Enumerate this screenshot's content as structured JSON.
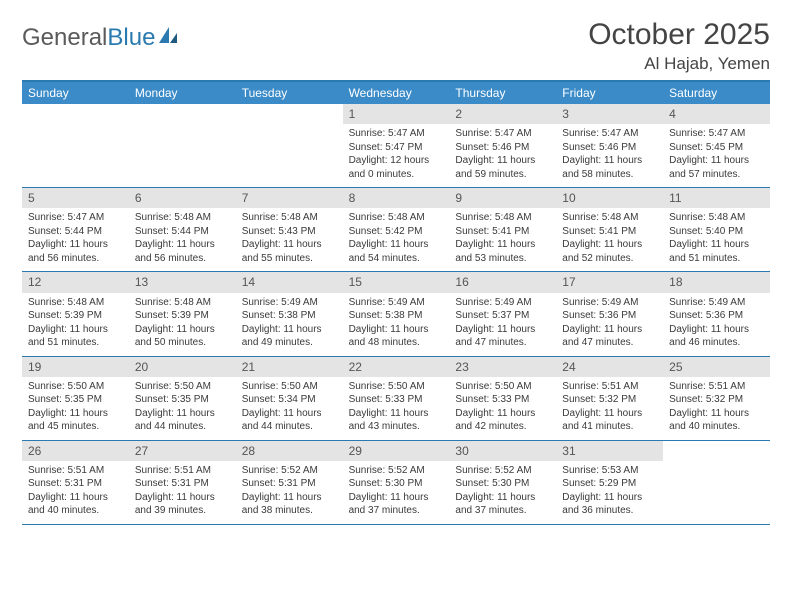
{
  "logo": {
    "text1": "General",
    "text2": "Blue"
  },
  "title": "October 2025",
  "location": "Al Hajab, Yemen",
  "colors": {
    "header_bg": "#3a8bc8",
    "border": "#2a7ab0",
    "daynum_bg": "#e4e4e4",
    "text": "#3a3a3a"
  },
  "dayNames": [
    "Sunday",
    "Monday",
    "Tuesday",
    "Wednesday",
    "Thursday",
    "Friday",
    "Saturday"
  ],
  "weeks": [
    [
      null,
      null,
      null,
      {
        "n": "1",
        "sr": "5:47 AM",
        "ss": "5:47 PM",
        "dl": "12 hours and 0 minutes."
      },
      {
        "n": "2",
        "sr": "5:47 AM",
        "ss": "5:46 PM",
        "dl": "11 hours and 59 minutes."
      },
      {
        "n": "3",
        "sr": "5:47 AM",
        "ss": "5:46 PM",
        "dl": "11 hours and 58 minutes."
      },
      {
        "n": "4",
        "sr": "5:47 AM",
        "ss": "5:45 PM",
        "dl": "11 hours and 57 minutes."
      }
    ],
    [
      {
        "n": "5",
        "sr": "5:47 AM",
        "ss": "5:44 PM",
        "dl": "11 hours and 56 minutes."
      },
      {
        "n": "6",
        "sr": "5:48 AM",
        "ss": "5:44 PM",
        "dl": "11 hours and 56 minutes."
      },
      {
        "n": "7",
        "sr": "5:48 AM",
        "ss": "5:43 PM",
        "dl": "11 hours and 55 minutes."
      },
      {
        "n": "8",
        "sr": "5:48 AM",
        "ss": "5:42 PM",
        "dl": "11 hours and 54 minutes."
      },
      {
        "n": "9",
        "sr": "5:48 AM",
        "ss": "5:41 PM",
        "dl": "11 hours and 53 minutes."
      },
      {
        "n": "10",
        "sr": "5:48 AM",
        "ss": "5:41 PM",
        "dl": "11 hours and 52 minutes."
      },
      {
        "n": "11",
        "sr": "5:48 AM",
        "ss": "5:40 PM",
        "dl": "11 hours and 51 minutes."
      }
    ],
    [
      {
        "n": "12",
        "sr": "5:48 AM",
        "ss": "5:39 PM",
        "dl": "11 hours and 51 minutes."
      },
      {
        "n": "13",
        "sr": "5:48 AM",
        "ss": "5:39 PM",
        "dl": "11 hours and 50 minutes."
      },
      {
        "n": "14",
        "sr": "5:49 AM",
        "ss": "5:38 PM",
        "dl": "11 hours and 49 minutes."
      },
      {
        "n": "15",
        "sr": "5:49 AM",
        "ss": "5:38 PM",
        "dl": "11 hours and 48 minutes."
      },
      {
        "n": "16",
        "sr": "5:49 AM",
        "ss": "5:37 PM",
        "dl": "11 hours and 47 minutes."
      },
      {
        "n": "17",
        "sr": "5:49 AM",
        "ss": "5:36 PM",
        "dl": "11 hours and 47 minutes."
      },
      {
        "n": "18",
        "sr": "5:49 AM",
        "ss": "5:36 PM",
        "dl": "11 hours and 46 minutes."
      }
    ],
    [
      {
        "n": "19",
        "sr": "5:50 AM",
        "ss": "5:35 PM",
        "dl": "11 hours and 45 minutes."
      },
      {
        "n": "20",
        "sr": "5:50 AM",
        "ss": "5:35 PM",
        "dl": "11 hours and 44 minutes."
      },
      {
        "n": "21",
        "sr": "5:50 AM",
        "ss": "5:34 PM",
        "dl": "11 hours and 44 minutes."
      },
      {
        "n": "22",
        "sr": "5:50 AM",
        "ss": "5:33 PM",
        "dl": "11 hours and 43 minutes."
      },
      {
        "n": "23",
        "sr": "5:50 AM",
        "ss": "5:33 PM",
        "dl": "11 hours and 42 minutes."
      },
      {
        "n": "24",
        "sr": "5:51 AM",
        "ss": "5:32 PM",
        "dl": "11 hours and 41 minutes."
      },
      {
        "n": "25",
        "sr": "5:51 AM",
        "ss": "5:32 PM",
        "dl": "11 hours and 40 minutes."
      }
    ],
    [
      {
        "n": "26",
        "sr": "5:51 AM",
        "ss": "5:31 PM",
        "dl": "11 hours and 40 minutes."
      },
      {
        "n": "27",
        "sr": "5:51 AM",
        "ss": "5:31 PM",
        "dl": "11 hours and 39 minutes."
      },
      {
        "n": "28",
        "sr": "5:52 AM",
        "ss": "5:31 PM",
        "dl": "11 hours and 38 minutes."
      },
      {
        "n": "29",
        "sr": "5:52 AM",
        "ss": "5:30 PM",
        "dl": "11 hours and 37 minutes."
      },
      {
        "n": "30",
        "sr": "5:52 AM",
        "ss": "5:30 PM",
        "dl": "11 hours and 37 minutes."
      },
      {
        "n": "31",
        "sr": "5:53 AM",
        "ss": "5:29 PM",
        "dl": "11 hours and 36 minutes."
      },
      null
    ]
  ],
  "labels": {
    "sunrise": "Sunrise:",
    "sunset": "Sunset:",
    "daylight": "Daylight:"
  }
}
